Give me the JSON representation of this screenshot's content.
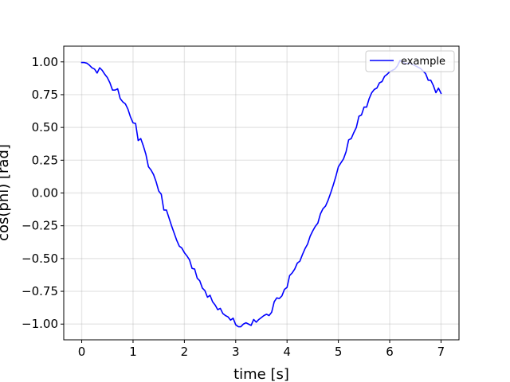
{
  "chart_data": {
    "type": "line",
    "title": "",
    "xlabel": "time [s]",
    "ylabel": "cos(phi) [rad]",
    "xlim": [
      -0.35,
      7.35
    ],
    "ylim": [
      -1.12,
      1.12
    ],
    "xticks": [
      0,
      1,
      2,
      3,
      4,
      5,
      6,
      7
    ],
    "xtick_labels": [
      "0",
      "1",
      "2",
      "3",
      "4",
      "5",
      "6",
      "7"
    ],
    "yticks": [
      1.0,
      0.75,
      0.5,
      0.25,
      0.0,
      -0.25,
      -0.5,
      -0.75,
      -1.0
    ],
    "ytick_labels": [
      "1.00",
      "0.75",
      "0.50",
      "0.25",
      "0.00",
      "−0.25",
      "−0.50",
      "−0.75",
      "−1.00"
    ],
    "grid": true,
    "legend_position": "top-right",
    "series": [
      {
        "name": "example",
        "color": "#0000ff",
        "x": [
          0.0,
          0.05,
          0.1,
          0.15,
          0.2,
          0.25,
          0.3,
          0.35,
          0.4,
          0.45,
          0.5,
          0.55,
          0.6,
          0.65,
          0.7,
          0.75,
          0.8,
          0.85,
          0.9,
          0.95,
          1.0,
          1.05,
          1.1,
          1.15,
          1.2,
          1.25,
          1.3,
          1.35,
          1.4,
          1.45,
          1.5,
          1.55,
          1.6,
          1.65,
          1.7,
          1.75,
          1.8,
          1.85,
          1.9,
          1.95,
          2.0,
          2.05,
          2.1,
          2.15,
          2.2,
          2.25,
          2.3,
          2.35,
          2.4,
          2.45,
          2.5,
          2.55,
          2.6,
          2.65,
          2.7,
          2.75,
          2.8,
          2.85,
          2.9,
          2.95,
          3.0,
          3.05,
          3.1,
          3.15,
          3.2,
          3.25,
          3.3,
          3.35,
          3.4,
          3.45,
          3.5,
          3.55,
          3.6,
          3.65,
          3.7,
          3.75,
          3.8,
          3.85,
          3.9,
          3.95,
          4.0,
          4.05,
          4.1,
          4.15,
          4.2,
          4.25,
          4.3,
          4.35,
          4.4,
          4.45,
          4.5,
          4.55,
          4.6,
          4.65,
          4.7,
          4.75,
          4.8,
          4.85,
          4.9,
          4.95,
          5.0,
          5.05,
          5.1,
          5.15,
          5.2,
          5.25,
          5.3,
          5.35,
          5.4,
          5.45,
          5.5,
          5.55,
          5.6,
          5.65,
          5.7,
          5.75,
          5.8,
          5.85,
          5.9,
          5.95,
          6.0,
          6.05,
          6.1,
          6.15,
          6.2,
          6.25,
          6.3,
          6.35,
          6.4,
          6.45,
          6.5,
          6.55,
          6.6,
          6.65,
          6.7,
          6.75,
          6.8,
          6.85,
          6.9,
          6.95,
          7.0
        ],
        "y": [
          0.995,
          0.995,
          0.99,
          0.975,
          0.955,
          0.945,
          0.915,
          0.955,
          0.935,
          0.905,
          0.88,
          0.84,
          0.785,
          0.785,
          0.795,
          0.72,
          0.695,
          0.68,
          0.64,
          0.58,
          0.535,
          0.53,
          0.4,
          0.415,
          0.36,
          0.295,
          0.2,
          0.175,
          0.14,
          0.085,
          0.015,
          -0.01,
          -0.13,
          -0.13,
          -0.19,
          -0.25,
          -0.305,
          -0.36,
          -0.405,
          -0.42,
          -0.455,
          -0.48,
          -0.51,
          -0.575,
          -0.58,
          -0.65,
          -0.67,
          -0.725,
          -0.745,
          -0.795,
          -0.78,
          -0.83,
          -0.855,
          -0.89,
          -0.88,
          -0.92,
          -0.935,
          -0.945,
          -0.97,
          -0.955,
          -1.005,
          -1.02,
          -1.02,
          -1.0,
          -0.99,
          -1.0,
          -1.01,
          -0.965,
          -0.985,
          -0.965,
          -0.95,
          -0.935,
          -0.925,
          -0.935,
          -0.91,
          -0.83,
          -0.8,
          -0.805,
          -0.785,
          -0.735,
          -0.72,
          -0.63,
          -0.61,
          -0.58,
          -0.535,
          -0.52,
          -0.47,
          -0.425,
          -0.39,
          -0.33,
          -0.29,
          -0.255,
          -0.23,
          -0.16,
          -0.12,
          -0.1,
          -0.055,
          0.0,
          0.06,
          0.125,
          0.2,
          0.23,
          0.26,
          0.315,
          0.405,
          0.415,
          0.46,
          0.5,
          0.585,
          0.595,
          0.655,
          0.655,
          0.72,
          0.765,
          0.79,
          0.8,
          0.84,
          0.85,
          0.89,
          0.905,
          0.925,
          0.935,
          0.945,
          0.97,
          1.01,
          1.005,
          0.985,
          0.99,
          0.99,
          0.98,
          0.97,
          0.96,
          0.95,
          0.93,
          0.91,
          0.86,
          0.86,
          0.82,
          0.765,
          0.8,
          0.76
        ]
      }
    ]
  },
  "legend": {
    "label": "example"
  }
}
